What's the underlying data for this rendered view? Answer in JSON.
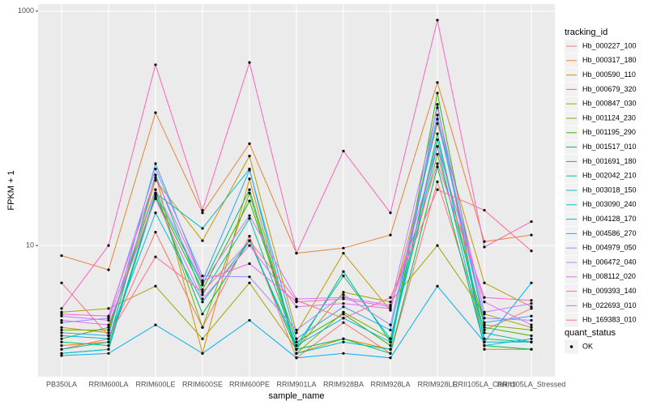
{
  "chart_data": {
    "type": "line",
    "log_y": true,
    "grid": true,
    "x_label": "sample_name",
    "y_label": "FPKM + 1",
    "categories": [
      "PB350LA",
      "RRIM600LA",
      "RRIM600LE",
      "RRIM600SE",
      "RRIM600PE",
      "RRIM901LA",
      "RRIM928BA",
      "RRIM928LA",
      "RRIM928LE",
      "RRII105LA_Control",
      "RRII105LA_Stressed"
    ],
    "ylim": [
      0.76,
      1150
    ],
    "yticks": [
      10,
      1000
    ],
    "legend_title": "tracking_id",
    "point_legend": {
      "title": "quant_status",
      "labels": [
        "OK"
      ],
      "color": "#000000"
    },
    "series": [
      {
        "name": "Hb_000227_100",
        "color": "#F8766D",
        "values": [
          1.3,
          1.6,
          13,
          2.0,
          12,
          1.1,
          2.2,
          1.2,
          35,
          1.9,
          2.9
        ]
      },
      {
        "name": "Hb_000317_180",
        "color": "#EA8331",
        "values": [
          8.2,
          6.2,
          136,
          19,
          74,
          8.6,
          9.5,
          12.3,
          246,
          10.8,
          12.3
        ]
      },
      {
        "name": "Hb_000590_110",
        "color": "#D89000",
        "values": [
          1.4,
          1.5,
          40,
          1.2,
          37,
          1.2,
          1.6,
          1.3,
          160,
          1.3,
          1.3
        ]
      },
      {
        "name": "Hb_000679_320",
        "color": "#C09B00",
        "values": [
          2.0,
          1.8,
          36,
          11,
          58,
          1.8,
          8.6,
          2.8,
          110,
          4.8,
          3.0
        ]
      },
      {
        "name": "Hb_000847_030",
        "color": "#A3A500",
        "values": [
          2.7,
          2.9,
          4.5,
          1.6,
          4.8,
          1.3,
          4.0,
          3.3,
          10,
          2.6,
          2.0
        ]
      },
      {
        "name": "Hb_001124_230",
        "color": "#7CAE00",
        "values": [
          1.9,
          1.9,
          30,
          2.0,
          28,
          1.2,
          2.7,
          1.6,
          60,
          2.1,
          1.9
        ]
      },
      {
        "name": "Hb_001195_290",
        "color": "#39B600",
        "values": [
          1.6,
          2.0,
          26,
          4.2,
          24,
          1.5,
          2.6,
          1.4,
          200,
          2.0,
          1.7
        ]
      },
      {
        "name": "Hb_001517_010",
        "color": "#00BB4E",
        "values": [
          1.2,
          1.3,
          27,
          2.6,
          11,
          1.3,
          1.6,
          1.2,
          47,
          1.4,
          1.3
        ]
      },
      {
        "name": "Hb_001691_180",
        "color": "#00BF7D",
        "values": [
          1.5,
          1.4,
          28,
          4.6,
          30,
          1.3,
          6.0,
          1.5,
          90,
          1.6,
          1.5
        ]
      },
      {
        "name": "Hb_002042_210",
        "color": "#00C1A3",
        "values": [
          1.3,
          1.5,
          40,
          3.8,
          17,
          1.4,
          5.5,
          1.6,
          80,
          1.8,
          1.5
        ]
      },
      {
        "name": "Hb_003018_150",
        "color": "#00BFC4",
        "values": [
          1.2,
          1.3,
          28,
          14,
          45,
          1.2,
          1.5,
          1.3,
          160,
          1.5,
          1.5
        ]
      },
      {
        "name": "Hb_003090_240",
        "color": "#00BAE0",
        "values": [
          1.7,
          1.6,
          19,
          3.3,
          11,
          1.4,
          2.4,
          1.5,
          70,
          1.4,
          1.6
        ]
      },
      {
        "name": "Hb_004128_170",
        "color": "#00B0F6",
        "values": [
          1.15,
          1.2,
          2.1,
          1.2,
          2.3,
          1.1,
          1.2,
          1.1,
          4.5,
          1.5,
          4.8
        ]
      },
      {
        "name": "Hb_004586_270",
        "color": "#35A2FF",
        "values": [
          1.8,
          1.7,
          50,
          5.0,
          44,
          1.6,
          3.0,
          1.9,
          120,
          2.2,
          2.5
        ]
      },
      {
        "name": "Hb_004979_050",
        "color": "#9590FF",
        "values": [
          2.2,
          2.4,
          45,
          5.5,
          5.4,
          1.9,
          3.8,
          2.1,
          130,
          2.4,
          2.3
        ]
      },
      {
        "name": "Hb_006472_040",
        "color": "#C77CFF",
        "values": [
          2.5,
          2.3,
          30,
          4.8,
          18,
          3.5,
          3.6,
          3.1,
          150,
          2.7,
          3.2
        ]
      },
      {
        "name": "Hb_008112_020",
        "color": "#E76BF3",
        "values": [
          2.3,
          2.1,
          25,
          3.5,
          10,
          3.0,
          3.2,
          2.9,
          70,
          3.3,
          2.1
        ]
      },
      {
        "name": "Hb_009393_140",
        "color": "#FA62DB",
        "values": [
          2.6,
          2.5,
          38,
          5.0,
          7.0,
          3.3,
          3.5,
          3.0,
          50,
          3.6,
          3.4
        ]
      },
      {
        "name": "Hb_022693_010",
        "color": "#FF62BC",
        "values": [
          2.9,
          10,
          349,
          20,
          365,
          8.6,
          64,
          19,
          838,
          9.7,
          16
        ]
      },
      {
        "name": "Hb_169383_010",
        "color": "#FF6C91",
        "values": [
          4.8,
          1.7,
          8.0,
          4.0,
          11,
          3.4,
          2.4,
          3.6,
          30,
          20,
          9
        ]
      }
    ]
  }
}
